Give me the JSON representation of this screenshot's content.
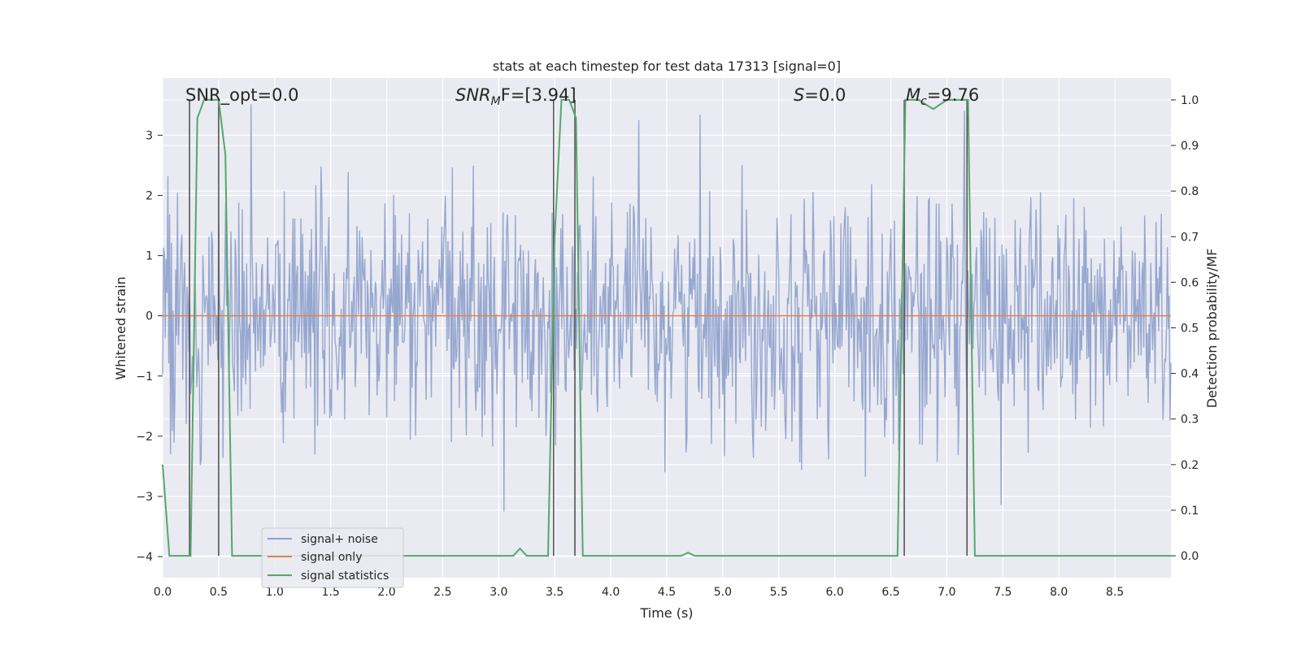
{
  "chart_data": {
    "type": "line",
    "title": "stats at each timestep for test data 17313 [signal=0]",
    "xlabel": "Time (s)",
    "ylabel": "Whitened strain",
    "y2label": "Detection probability/MF",
    "xlim": [
      0.0,
      9.0
    ],
    "ylim": [
      -4.35,
      3.95
    ],
    "y2lim": [
      -0.048,
      1.048
    ],
    "xticks": [
      "0.0",
      "0.5",
      "1.0",
      "1.5",
      "2.0",
      "2.5",
      "3.0",
      "3.5",
      "4.0",
      "4.5",
      "5.0",
      "5.5",
      "6.0",
      "6.5",
      "7.0",
      "7.5",
      "8.0",
      "8.5"
    ],
    "yticks": [
      "-4",
      "-3",
      "-2",
      "-1",
      "0",
      "1",
      "2",
      "3"
    ],
    "y2ticks": [
      "0.0",
      "0.1",
      "0.2",
      "0.3",
      "0.4",
      "0.5",
      "0.6",
      "0.7",
      "0.8",
      "0.9",
      "1.0"
    ],
    "grid": true,
    "legend_position": "lower-left",
    "legend": [
      "signal+ noise",
      "signal only",
      "signal statistics"
    ],
    "colors": {
      "noise": "#8da0cb",
      "signal_only": "#dd8452",
      "statistics": "#55a868",
      "vline": "#555555",
      "background": "#eaeaf2",
      "grid": "#ffffff"
    },
    "annotations": {
      "snr_opt": "SNR_opt=0.0",
      "snr_mf_base": "SNR",
      "snr_mf_sub": "M",
      "snr_mf_rest": "F=[3.94]",
      "s_base": "S",
      "s_rest": "=0.0",
      "mc_base": "M",
      "mc_sub": "c",
      "mc_rest": "=9.76"
    },
    "noise_series": {
      "name": "signal+ noise",
      "description_values": "whitened strain noise, approx. gaussian, range about -3.2 to 3.6",
      "sample_interval": 0.0078125,
      "amplitude_std": 1.0
    },
    "signal_only": {
      "name": "signal only",
      "x": [
        0.0,
        9.0
      ],
      "y": [
        0.0,
        0.0
      ]
    },
    "statistics_series": {
      "name": "signal statistics",
      "x": [
        0.0,
        0.06,
        0.25,
        0.31,
        0.37,
        0.44,
        0.5,
        0.56,
        0.62,
        0.68,
        1.0,
        1.5,
        2.0,
        2.5,
        3.0,
        3.13,
        3.19,
        3.25,
        3.31,
        3.44,
        3.5,
        3.56,
        3.63,
        3.69,
        3.75,
        3.81,
        3.88,
        4.0,
        4.5,
        4.63,
        4.69,
        4.75,
        5.0,
        5.5,
        6.0,
        6.5,
        6.56,
        6.63,
        6.69,
        6.75,
        6.81,
        6.88,
        6.94,
        7.0,
        7.06,
        7.13,
        7.19,
        7.25,
        7.31,
        7.5,
        8.0,
        8.5,
        9.0
      ],
      "y": [
        0.2,
        0.0,
        0.0,
        0.96,
        1.0,
        1.0,
        1.0,
        0.88,
        0.0,
        0.0,
        0.0,
        0.0,
        0.0,
        0.0,
        0.0,
        0.0,
        0.016,
        0.0,
        0.0,
        0.0,
        0.7,
        1.0,
        1.0,
        0.96,
        0.0,
        0.0,
        0.0,
        0.0,
        0.0,
        0.0,
        0.007,
        0.0,
        0.0,
        0.0,
        0.0,
        0.0,
        0.0,
        1.0,
        1.0,
        1.0,
        0.99,
        0.98,
        0.99,
        1.0,
        1.0,
        1.0,
        1.0,
        0.0,
        0.0,
        0.0,
        0.0,
        0.0,
        0.0
      ]
    },
    "vlines": [
      0.24,
      0.5,
      3.49,
      3.68,
      6.62,
      7.18
    ]
  }
}
